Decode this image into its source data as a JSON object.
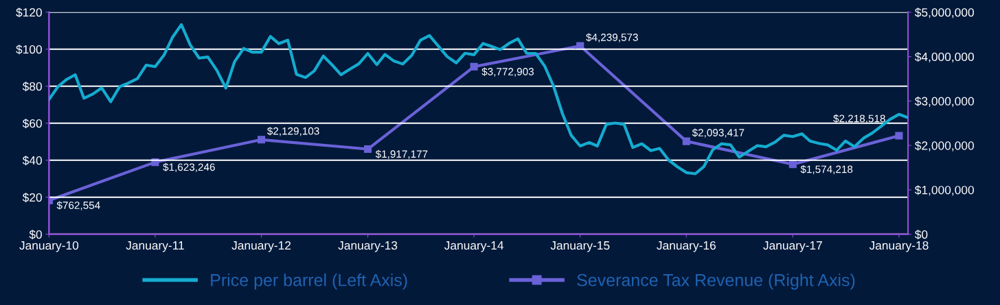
{
  "chart_data": {
    "type": "line",
    "x": [
      "2010-01",
      "2010-02",
      "2010-03",
      "2010-04",
      "2010-05",
      "2010-06",
      "2010-07",
      "2010-08",
      "2010-09",
      "2010-10",
      "2010-11",
      "2010-12",
      "2011-01",
      "2011-02",
      "2011-03",
      "2011-04",
      "2011-05",
      "2011-06",
      "2011-07",
      "2011-08",
      "2011-09",
      "2011-10",
      "2011-11",
      "2011-12",
      "2012-01",
      "2012-02",
      "2012-03",
      "2012-04",
      "2012-05",
      "2012-06",
      "2012-07",
      "2012-08",
      "2012-09",
      "2012-10",
      "2012-11",
      "2012-12",
      "2013-01",
      "2013-02",
      "2013-03",
      "2013-04",
      "2013-05",
      "2013-06",
      "2013-07",
      "2013-08",
      "2013-09",
      "2013-10",
      "2013-11",
      "2013-12",
      "2014-01",
      "2014-02",
      "2014-03",
      "2014-04",
      "2014-05",
      "2014-06",
      "2014-07",
      "2014-08",
      "2014-09",
      "2014-10",
      "2014-11",
      "2014-12",
      "2015-01",
      "2015-02",
      "2015-03",
      "2015-04",
      "2015-05",
      "2015-06",
      "2015-07",
      "2015-08",
      "2015-09",
      "2015-10",
      "2015-11",
      "2015-12",
      "2016-01",
      "2016-02",
      "2016-03",
      "2016-04",
      "2016-05",
      "2016-06",
      "2016-07",
      "2016-08",
      "2016-09",
      "2016-10",
      "2016-11",
      "2016-12",
      "2017-01",
      "2017-02",
      "2017-03",
      "2017-04",
      "2017-05",
      "2017-06",
      "2017-07",
      "2017-08",
      "2017-09",
      "2017-10",
      "2017-11",
      "2017-12",
      "2018-01",
      "2018-02"
    ],
    "series": [
      {
        "name": "Price per barrel (Left Axis)",
        "color": "#14acd0",
        "values": [
          72.8,
          79.8,
          83.5,
          86.2,
          73.5,
          75.8,
          79.1,
          71.6,
          79.8,
          81.7,
          84.1,
          91.4,
          90.6,
          97.0,
          106.3,
          113.3,
          102.5,
          95.2,
          95.8,
          88.6,
          79.0,
          93.3,
          100.4,
          98.4,
          98.4,
          106.9,
          103.0,
          104.9,
          86.4,
          84.7,
          88.3,
          96.3,
          91.4,
          86.2,
          89.3,
          92.1,
          97.7,
          91.7,
          97.2,
          93.6,
          92.0,
          96.7,
          104.9,
          107.4,
          101.6,
          96.0,
          92.6,
          97.8,
          97.0,
          103.1,
          101.6,
          99.8,
          103.1,
          105.6,
          97.8,
          97.7,
          90.9,
          80.2,
          65.2,
          53.5,
          47.7,
          49.6,
          47.7,
          59.4,
          60.1,
          59.4,
          46.9,
          48.9,
          45.2,
          46.4,
          40.1,
          36.5,
          33.3,
          32.7,
          36.5,
          45.7,
          48.9,
          48.3,
          41.7,
          44.8,
          47.9,
          47.3,
          49.8,
          53.5,
          52.8,
          54.3,
          50.4,
          49.1,
          48.3,
          45.4,
          50.4,
          47.3,
          51.9,
          54.7,
          58.4,
          62.1,
          64.8,
          63.0
        ],
        "marker": "none"
      },
      {
        "name": "Severance Tax Revenue (Right Axis)",
        "color": "#6a62d8",
        "axis": "y2",
        "marker": "square",
        "x": [
          "2010-01",
          "2011-01",
          "2012-01",
          "2013-01",
          "2014-01",
          "2015-01",
          "2016-01",
          "2017-01",
          "2018-01"
        ],
        "values": [
          762554,
          1623246,
          2129103,
          1917177,
          3772903,
          4239573,
          2093417,
          1574218,
          2218518
        ],
        "value_labels": [
          "$762,554",
          "$1,623,246",
          "$2,129,103",
          "$1,917,177",
          "$3,772,903",
          "$4,239,573",
          "$2,093,417",
          "$1,574,218",
          "$2,218,518"
        ]
      }
    ],
    "xlim": [
      "2010-01",
      "2018-02"
    ],
    "xticks": [
      {
        "value": "2010-01",
        "label": "January-10"
      },
      {
        "value": "2011-01",
        "label": "January-11"
      },
      {
        "value": "2012-01",
        "label": "January-12"
      },
      {
        "value": "2013-01",
        "label": "January-13"
      },
      {
        "value": "2014-01",
        "label": "January-14"
      },
      {
        "value": "2015-01",
        "label": "January-15"
      },
      {
        "value": "2016-01",
        "label": "January-16"
      },
      {
        "value": "2017-01",
        "label": "January-17"
      },
      {
        "value": "2018-01",
        "label": "January-18"
      }
    ],
    "ylim": [
      0,
      120
    ],
    "yticks": [
      {
        "value": 0,
        "label": "$0"
      },
      {
        "value": 20,
        "label": "$20"
      },
      {
        "value": 40,
        "label": "$40"
      },
      {
        "value": 60,
        "label": "$60"
      },
      {
        "value": 80,
        "label": "$80"
      },
      {
        "value": 100,
        "label": "$100"
      },
      {
        "value": 120,
        "label": "$120"
      }
    ],
    "y2lim": [
      0,
      5000000
    ],
    "y2ticks": [
      {
        "value": 0,
        "label": "$0"
      },
      {
        "value": 1000000,
        "label": "$1,000,000"
      },
      {
        "value": 2000000,
        "label": "$2,000,000"
      },
      {
        "value": 3000000,
        "label": "$3,000,000"
      },
      {
        "value": 4000000,
        "label": "$4,000,000"
      },
      {
        "value": 5000000,
        "label": "$5,000,000"
      }
    ],
    "grid": "y",
    "legend": "bottom",
    "line_style": "solid"
  }
}
